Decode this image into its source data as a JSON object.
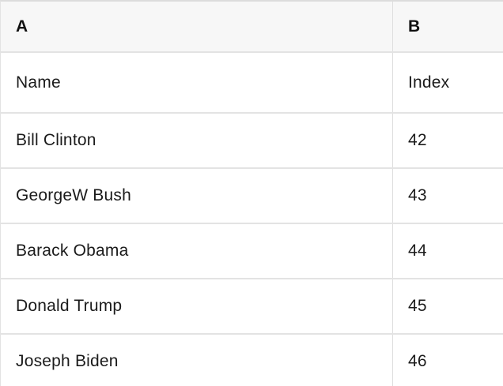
{
  "table": {
    "column_headers": [
      "A",
      "B"
    ],
    "rows": [
      [
        "Name",
        "Index"
      ],
      [
        "Bill Clinton",
        "42"
      ],
      [
        "GeorgeW Bush",
        "43"
      ],
      [
        "Barack Obama",
        "44"
      ],
      [
        "Donald Trump",
        "45"
      ],
      [
        "Joseph Biden",
        "46"
      ]
    ]
  },
  "colors": {
    "header_background": "#f7f7f7",
    "row_background": "#ffffff",
    "grid_line": "#e3e3e3",
    "text": "#1b1b1b"
  }
}
